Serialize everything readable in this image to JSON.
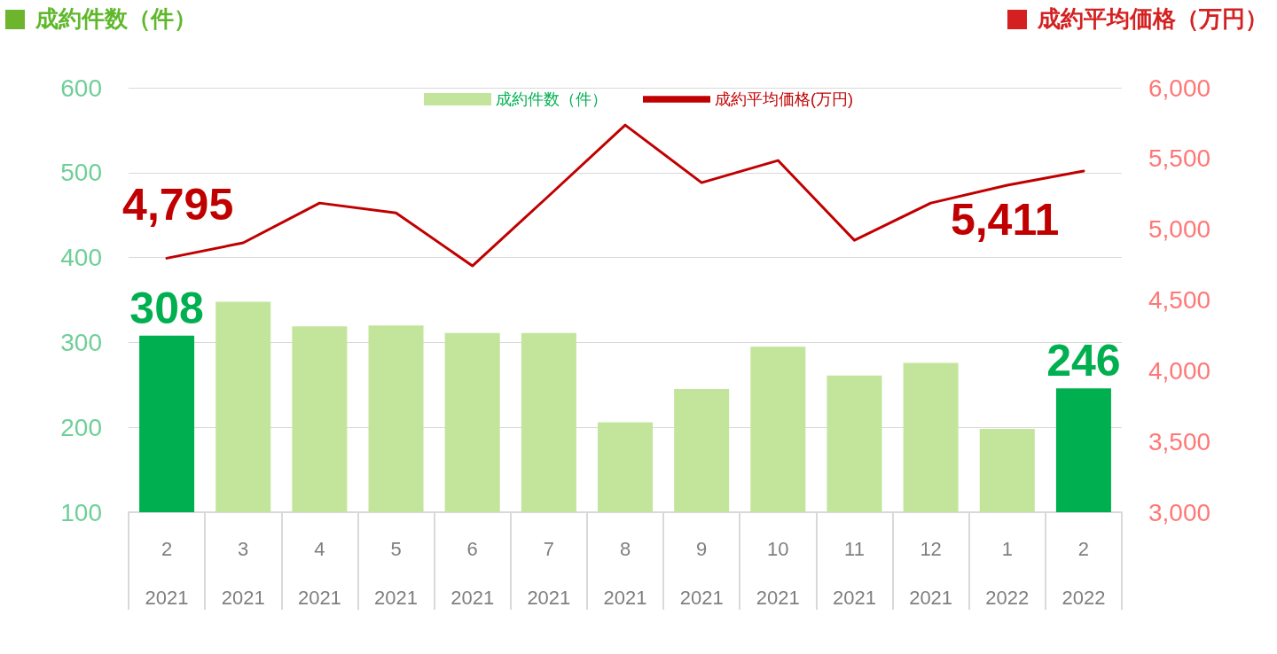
{
  "chart_data": {
    "type": "bar",
    "ylabel": "成約件数（件）",
    "y2label": "成約平均価格（万円）",
    "categories": [
      "2\n2021",
      "3\n2021",
      "4\n2021",
      "5\n2021",
      "6\n2021",
      "7\n2021",
      "8\n2021",
      "9\n2021",
      "10\n2021",
      "11\n2021",
      "12\n2021",
      "1\n2022",
      "2\n2022"
    ],
    "series": [
      {
        "name": "成約件数（件）",
        "color": "#c3e59b",
        "colors": [
          "#00b050",
          "#c3e59b",
          "#c3e59b",
          "#c3e59b",
          "#c3e59b",
          "#c3e59b",
          "#c3e59b",
          "#c3e59b",
          "#c3e59b",
          "#c3e59b",
          "#c3e59b",
          "#c3e59b",
          "#00b050"
        ],
        "values": [
          308,
          348,
          319,
          320,
          311,
          311,
          206,
          245,
          295,
          261,
          276,
          198,
          246
        ],
        "value_labels": [
          "308",
          null,
          null,
          null,
          null,
          null,
          null,
          null,
          null,
          null,
          null,
          null,
          "246"
        ]
      },
      {
        "name": "成約平均価格(万円)",
        "type": "line",
        "axis": "y2",
        "color": "#c00000",
        "values": [
          4795,
          4904,
          5185,
          5116,
          4741,
          5236,
          5736,
          5329,
          5486,
          4922,
          5185,
          5311,
          5411
        ],
        "value_labels": [
          "4,795",
          null,
          null,
          null,
          null,
          null,
          null,
          null,
          null,
          null,
          null,
          null,
          "5,411"
        ]
      }
    ],
    "ylim": [
      100,
      600
    ],
    "yticks": [
      100,
      200,
      300,
      400,
      500,
      600
    ],
    "y2lim": [
      3000,
      6000
    ],
    "y2ticks": [
      {
        "value": 3000,
        "label": "3,000"
      },
      {
        "value": 3500,
        "label": "3,500"
      },
      {
        "value": 4000,
        "label": "4,000"
      },
      {
        "value": 4500,
        "label": "4,500"
      },
      {
        "value": 5000,
        "label": "5,000"
      },
      {
        "value": 5500,
        "label": "5,500"
      },
      {
        "value": 6000,
        "label": "6,000"
      }
    ],
    "grid": "y",
    "legend": "top",
    "marker": "none",
    "line_style": "solid"
  }
}
